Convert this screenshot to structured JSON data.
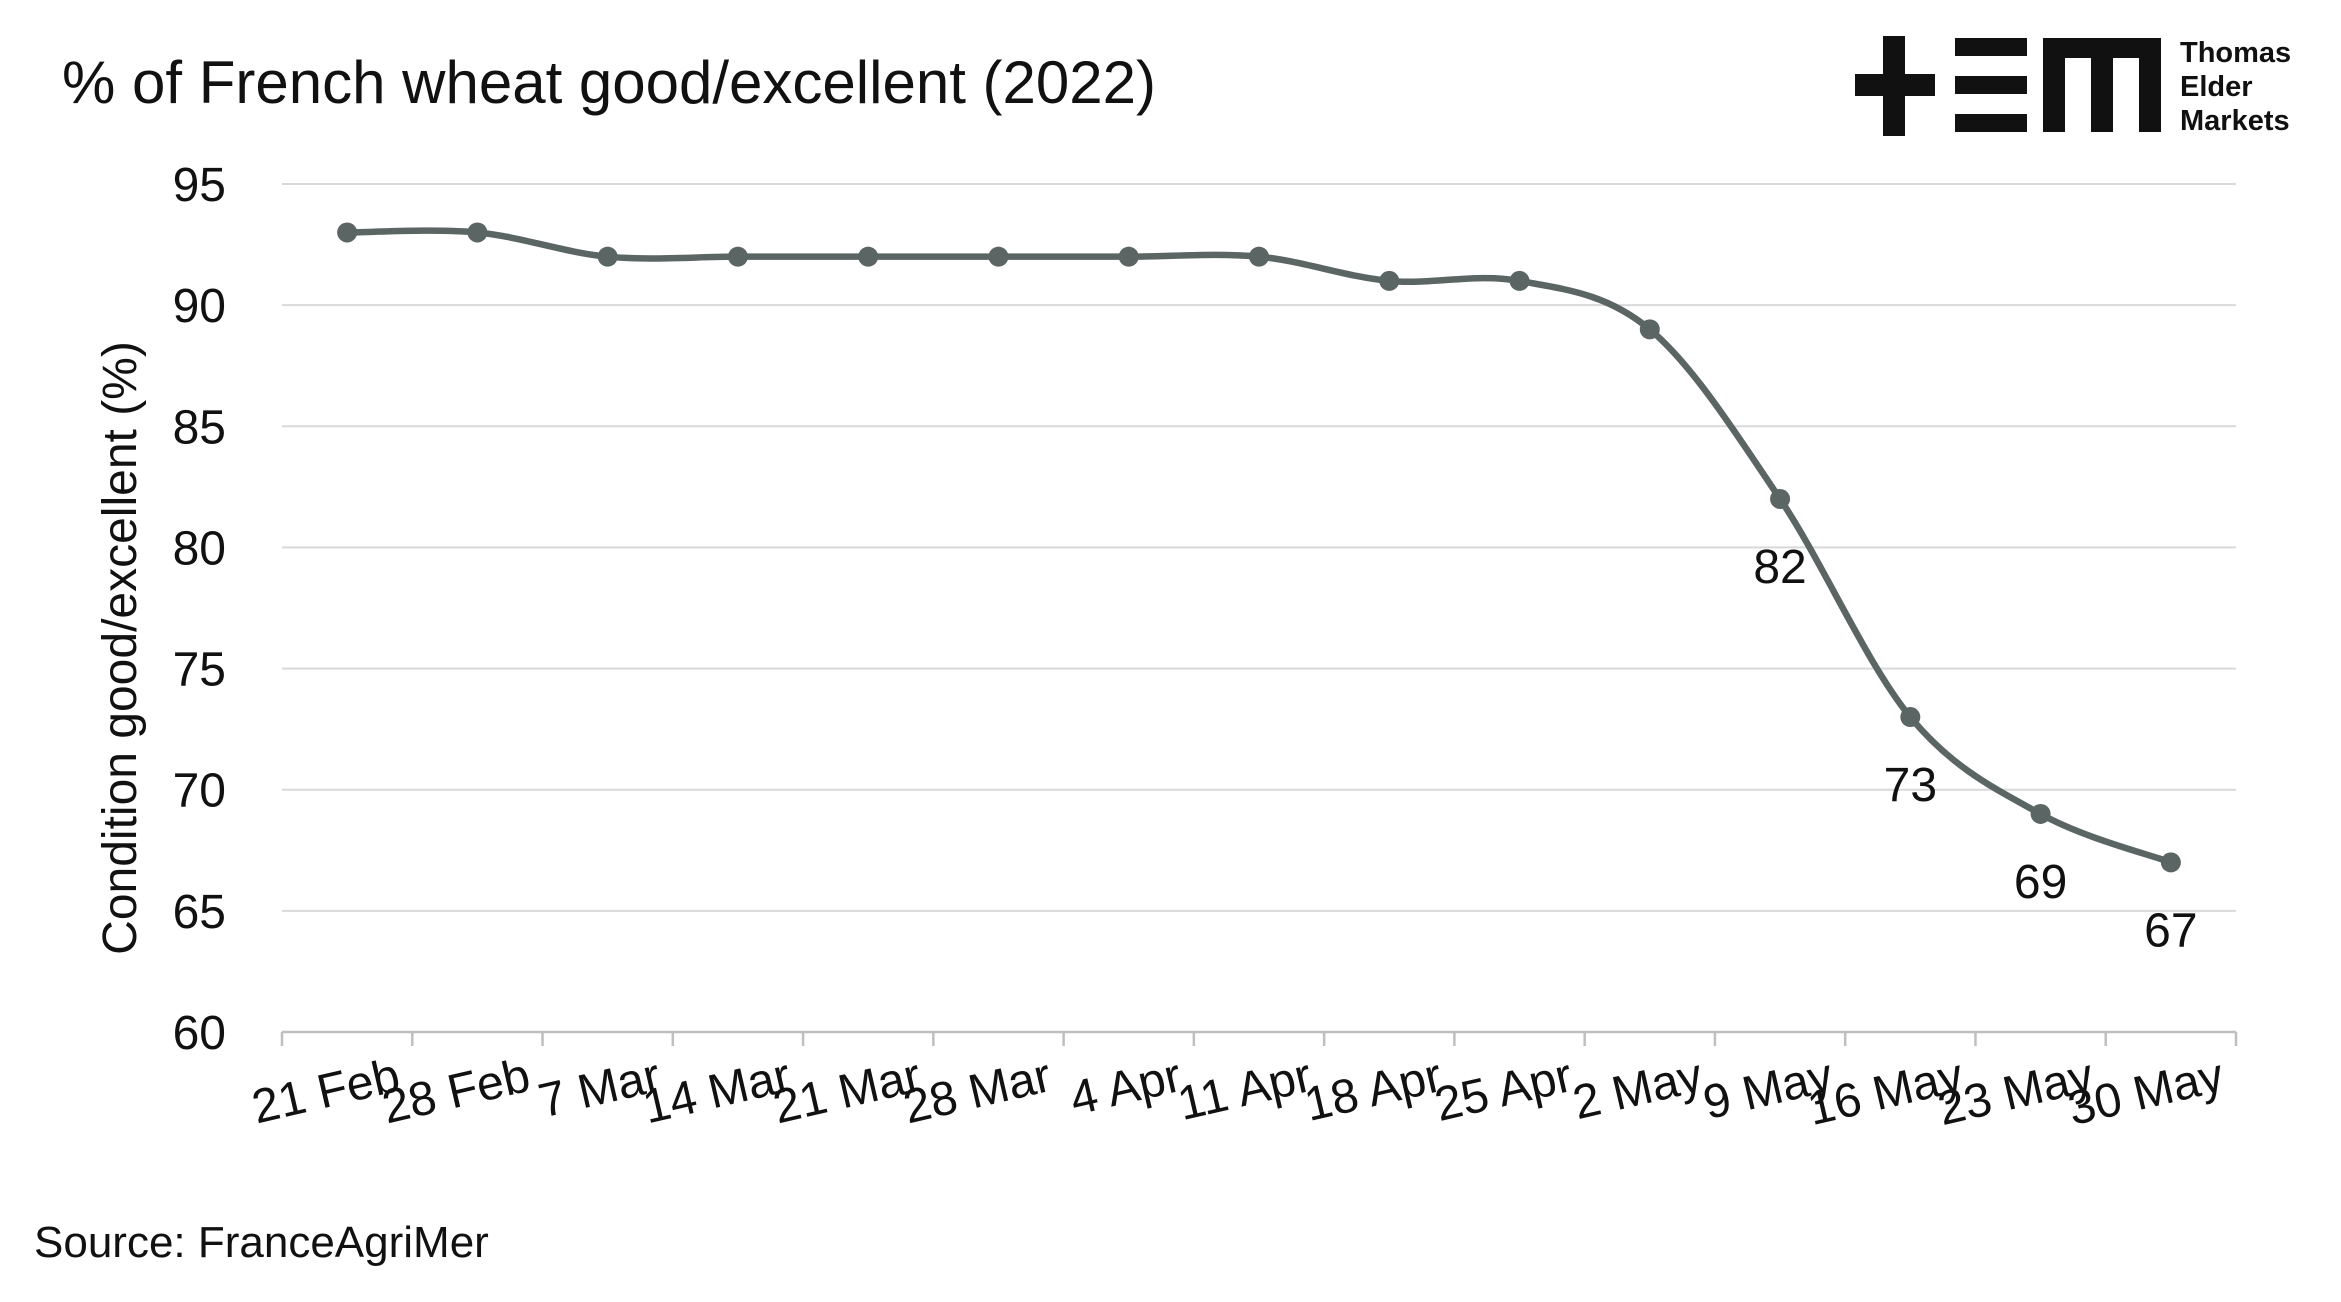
{
  "title": "% of French wheat good/excellent (2022)",
  "source": "Source: FranceAgriMer",
  "logo": {
    "lines": [
      "Thomas",
      "Elder",
      "Markets"
    ]
  },
  "colors": {
    "series": "#5b6664",
    "grid": "#d9d9d9",
    "axis": "#bfbfbf",
    "text": "#111111"
  },
  "chart_data": {
    "type": "line",
    "title": "% of French wheat good/excellent (2022)",
    "xlabel": "",
    "ylabel": "Condition good/excellent (%)",
    "ylim": [
      60,
      95
    ],
    "yticks": [
      60,
      65,
      70,
      75,
      80,
      85,
      90,
      95
    ],
    "grid": true,
    "legend": "none",
    "categories": [
      "21 Feb",
      "28 Feb",
      "7 Mar",
      "14 Mar",
      "21 Mar",
      "28 Mar",
      "4 Apr",
      "11 Apr",
      "18 Apr",
      "25 Apr",
      "2 May",
      "9 May",
      "16 May",
      "23 May",
      "30 May"
    ],
    "series": [
      {
        "values": [
          93,
          93,
          92,
          92,
          92,
          92,
          92,
          92,
          91,
          91,
          89,
          82,
          73,
          69,
          67
        ],
        "data_labels": [
          "",
          "",
          "",
          "",
          "",
          "",
          "",
          "",
          "",
          "",
          "",
          "82",
          "73",
          "69",
          "67"
        ]
      }
    ]
  }
}
